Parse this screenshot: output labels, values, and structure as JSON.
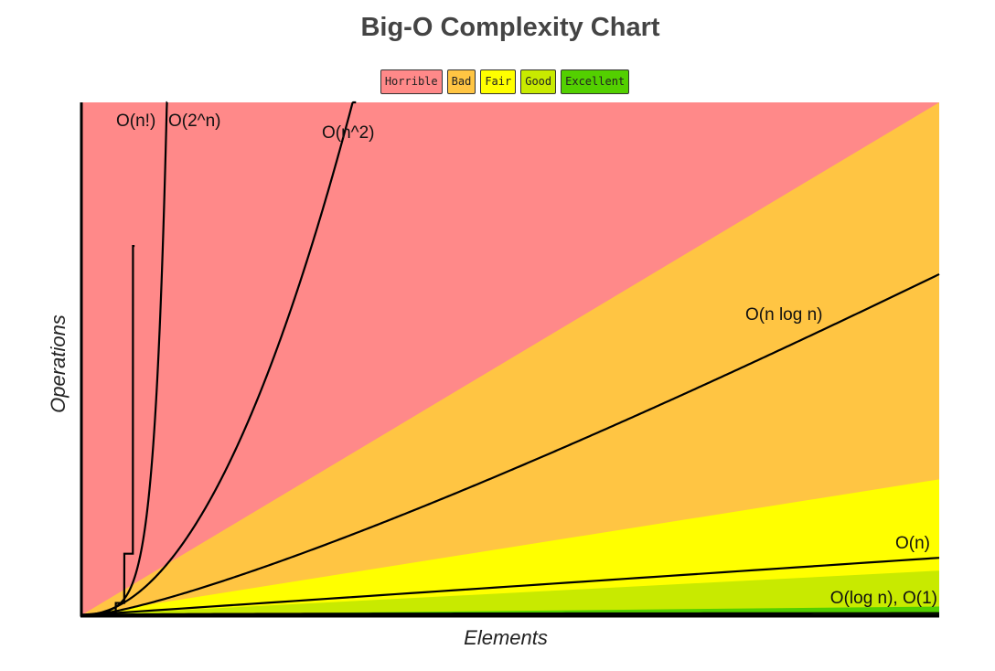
{
  "chart_data": {
    "type": "line",
    "title": "Big-O Complexity Chart",
    "xlabel": "Elements",
    "ylabel": "Operations",
    "legend": [
      {
        "label": "Horrible",
        "color": "#ff8989"
      },
      {
        "label": "Bad",
        "color": "#ffc543"
      },
      {
        "label": "Fair",
        "color": "#ffff00"
      },
      {
        "label": "Good",
        "color": "#c8ea00"
      },
      {
        "label": "Excellent",
        "color": "#53d000"
      }
    ],
    "legend_placement": "top-center",
    "grid": false,
    "axis_ticks": false,
    "series": [
      {
        "name": "O(n!)",
        "label": "O(n!)"
      },
      {
        "name": "O(2^n)",
        "label": "O(2^n)"
      },
      {
        "name": "O(n^2)",
        "label": "O(n^2)"
      },
      {
        "name": "O(n log n)",
        "label": "O(n log n)"
      },
      {
        "name": "O(n)",
        "label": "O(n)"
      },
      {
        "name": "O(log n)",
        "label": "O(log n), O(1)"
      },
      {
        "name": "O(1)",
        "label": ""
      }
    ],
    "line_color": "#000000"
  }
}
